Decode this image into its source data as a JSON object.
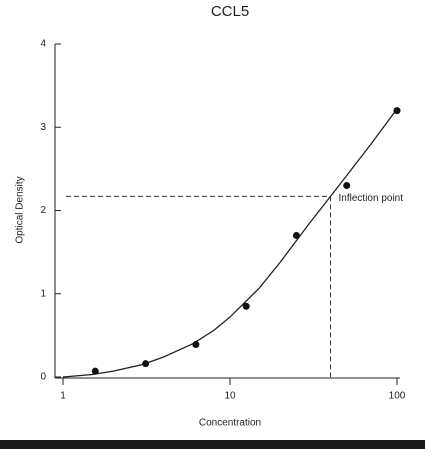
{
  "chart_data": {
    "type": "scatter",
    "title": "CCL5",
    "x_label": "Concentration",
    "y_label": "Optical Density",
    "x": [
      1.56,
      3.125,
      6.25,
      12.5,
      25,
      50,
      100
    ],
    "values": [
      0.07,
      0.16,
      0.39,
      0.85,
      1.7,
      2.3,
      3.2
    ],
    "color": "#111111",
    "curve_x": [
      1,
      1.5,
      2,
      3,
      4,
      6,
      8,
      10,
      15,
      20,
      30,
      40,
      50,
      70,
      100
    ],
    "curve_y": [
      0,
      0.03,
      0.07,
      0.15,
      0.24,
      0.4,
      0.56,
      0.72,
      1.07,
      1.38,
      1.85,
      2.17,
      2.42,
      2.8,
      3.22
    ],
    "xlim": [
      1,
      100
    ],
    "xticks": [
      1,
      10,
      100
    ],
    "xscale": "log",
    "ylim": [
      0,
      4
    ],
    "yticks": [
      0,
      1,
      2,
      3,
      4
    ],
    "annotation": {
      "text": "Inflection point",
      "x": 40,
      "y": 2.17
    }
  }
}
